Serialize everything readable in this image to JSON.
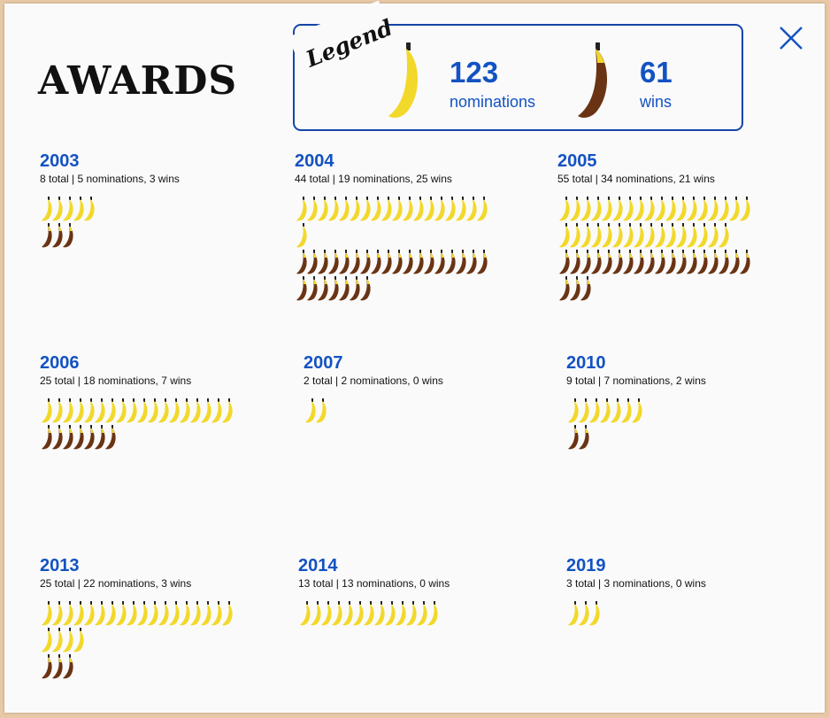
{
  "title": "AWARDS",
  "close_icon": "close-x-icon",
  "colors": {
    "accent": "#1352c2",
    "nomination": "#f2d82a",
    "win": "#6a3414",
    "win_tip": "#f2d82a"
  },
  "legend": {
    "label": "Legend",
    "nominations": {
      "count": "123",
      "label": "nominations",
      "icon": "yellow-banana-icon"
    },
    "wins": {
      "count": "61",
      "label": "wins",
      "icon": "brown-banana-icon"
    }
  },
  "years": [
    {
      "year": "2003",
      "summary": "8 total | 5 nominations, 3 wins",
      "nominations": 5,
      "wins": 3
    },
    {
      "year": "2004",
      "summary": "44 total | 19 nominations, 25 wins",
      "nominations": 19,
      "wins": 25
    },
    {
      "year": "2005",
      "summary": "55 total | 34 nominations, 21 wins",
      "nominations": 34,
      "wins": 21
    },
    {
      "year": "2006",
      "summary": "25 total | 18 nominations, 7 wins",
      "nominations": 18,
      "wins": 7
    },
    {
      "year": "2007",
      "summary": "2 total | 2 nominations, 0 wins",
      "nominations": 2,
      "wins": 0
    },
    {
      "year": "2010",
      "summary": "9 total | 7 nominations, 2 wins",
      "nominations": 7,
      "wins": 2
    },
    {
      "year": "2013",
      "summary": "25 total | 22 nominations, 3 wins",
      "nominations": 22,
      "wins": 3
    },
    {
      "year": "2014",
      "summary": "13 total | 13 nominations, 0 wins",
      "nominations": 13,
      "wins": 0
    },
    {
      "year": "2019",
      "summary": "3 total | 3 nominations, 0 wins",
      "nominations": 3,
      "wins": 0
    }
  ]
}
